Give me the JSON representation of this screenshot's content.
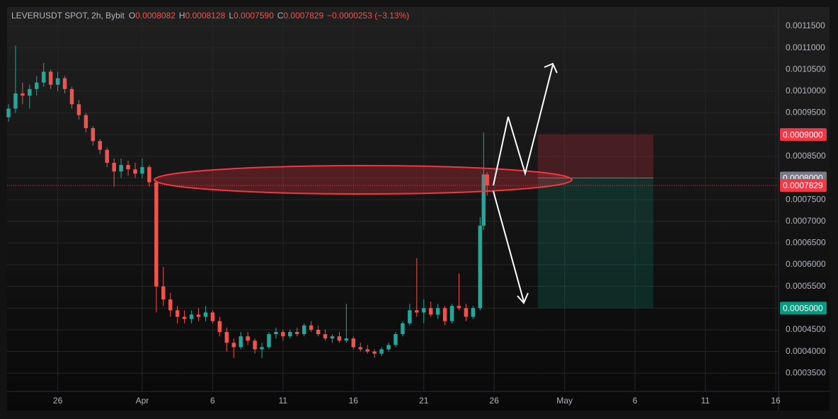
{
  "chart_data": {
    "type": "candlestick",
    "header": {
      "symbol": "LEVERUSDT SPOT, 2h, Bybit",
      "fields": [
        {
          "key": "O",
          "value": "0.0008082"
        },
        {
          "key": "H",
          "value": "0.0008128"
        },
        {
          "key": "L",
          "value": "0.0007590"
        },
        {
          "key": "C",
          "value": "0.0007829"
        }
      ],
      "change": "−0.0000253 (−3.13%)"
    },
    "up_color": "#26a69a",
    "down_color": "#ef5350",
    "x": [
      -9.5,
      -9,
      -8.5,
      -8,
      -7.5,
      -7,
      -6.5,
      -6,
      -5.5,
      -5,
      -4.5,
      -4,
      -3.5,
      -3,
      -2.5,
      -2,
      -1.5,
      -1,
      -0.5,
      0,
      0.5,
      1,
      1.5,
      2,
      2.5,
      3,
      3.5,
      4,
      4.5,
      5,
      5.5,
      6,
      6.5,
      7,
      7.5,
      8,
      8.5,
      9,
      9.5,
      10,
      10.5,
      11,
      11.5,
      12,
      12.5,
      13,
      13.5,
      14,
      14.5,
      15,
      15.5,
      16,
      16.5,
      17,
      17.5,
      18,
      18.5,
      19,
      19.5,
      20,
      20.5,
      21,
      21.5,
      22,
      22.5,
      23,
      23.5,
      24,
      24.25,
      24.5
    ],
    "open": [
      0.00094,
      0.00096,
      0.000995,
      0.00099,
      0.001005,
      0.00102,
      0.001045,
      0.001015,
      0.00103,
      0.001005,
      0.00097,
      0.000945,
      0.000915,
      0.000885,
      0.000865,
      0.000835,
      0.000815,
      0.00083,
      0.00082,
      0.00081,
      0.000825,
      0.00079,
      0.00055,
      0.00052,
      0.000495,
      0.00048,
      0.000475,
      0.000485,
      0.00048,
      0.00049,
      0.00047,
      0.000445,
      0.00042,
      0.00041,
      0.000435,
      0.000425,
      0.000405,
      0.00041,
      0.00044,
      0.000445,
      0.000435,
      0.000445,
      0.00044,
      0.00046,
      0.00045,
      0.00044,
      0.00043,
      0.000435,
      0.000425,
      0.00043,
      0.00041,
      0.000405,
      0.0004,
      0.000395,
      0.000405,
      0.000415,
      0.00044,
      0.000465,
      0.000495,
      0.00049,
      0.0005,
      0.000485,
      0.0005,
      0.00047,
      0.000505,
      0.0005,
      0.00048,
      0.0005,
      0.00069,
      0.0008082
    ],
    "high": [
      0.00097,
      0.001105,
      0.00102,
      0.001015,
      0.001035,
      0.001065,
      0.00105,
      0.001045,
      0.001035,
      0.00101,
      0.00098,
      0.00095,
      0.00092,
      0.00089,
      0.00087,
      0.000845,
      0.000845,
      0.00084,
      0.000835,
      0.000845,
      0.00083,
      0.000795,
      0.000595,
      0.000535,
      0.000505,
      0.000495,
      0.000495,
      0.0005,
      0.000505,
      0.000495,
      0.00048,
      0.000455,
      0.00043,
      0.000445,
      0.000445,
      0.00043,
      0.00042,
      0.000445,
      0.000455,
      0.00045,
      0.00045,
      0.000455,
      0.000465,
      0.00047,
      0.00046,
      0.00045,
      0.00044,
      0.000445,
      0.00051,
      0.000435,
      0.00042,
      0.000415,
      0.000405,
      0.00041,
      0.00042,
      0.000445,
      0.00047,
      0.00051,
      0.000615,
      0.00052,
      0.000515,
      0.00051,
      0.000505,
      0.00051,
      0.00058,
      0.00051,
      0.000505,
      0.00071,
      0.000905,
      0.0008128
    ],
    "low": [
      0.00093,
      0.00095,
      0.00097,
      0.00096,
      0.00099,
      0.00101,
      0.001005,
      0.001,
      0.000995,
      0.00096,
      0.000935,
      0.000905,
      0.000875,
      0.000855,
      0.000825,
      0.00078,
      0.0008,
      0.000805,
      0.0008,
      0.0008,
      0.00078,
      0.00049,
      0.000505,
      0.00048,
      0.000465,
      0.000465,
      0.000465,
      0.00047,
      0.00047,
      0.000465,
      0.000435,
      0.0004,
      0.000385,
      0.000405,
      0.000415,
      0.000395,
      0.000385,
      0.000405,
      0.00043,
      0.000425,
      0.00043,
      0.000435,
      0.000435,
      0.000445,
      0.000435,
      0.000425,
      0.00042,
      0.00042,
      0.00042,
      0.000405,
      0.0004,
      0.000395,
      0.000385,
      0.00039,
      0.0004,
      0.00041,
      0.000435,
      0.00046,
      0.00048,
      0.000465,
      0.00048,
      0.000475,
      0.00046,
      0.000465,
      0.000495,
      0.00047,
      0.000475,
      0.000495,
      0.00068,
      0.000759
    ],
    "close": [
      0.00096,
      0.000995,
      0.00099,
      0.001005,
      0.00102,
      0.001045,
      0.001015,
      0.00103,
      0.001005,
      0.00097,
      0.000945,
      0.000915,
      0.000885,
      0.000865,
      0.000835,
      0.000815,
      0.00083,
      0.00082,
      0.00081,
      0.000825,
      0.00079,
      0.00055,
      0.00052,
      0.000495,
      0.00048,
      0.000475,
      0.000485,
      0.00048,
      0.00049,
      0.00047,
      0.000445,
      0.00042,
      0.00041,
      0.000435,
      0.000425,
      0.000405,
      0.00041,
      0.00044,
      0.000445,
      0.000435,
      0.000445,
      0.00044,
      0.00046,
      0.00045,
      0.00044,
      0.00043,
      0.000435,
      0.000425,
      0.00043,
      0.00041,
      0.000405,
      0.0004,
      0.000395,
      0.000405,
      0.000415,
      0.00044,
      0.000465,
      0.000495,
      0.00049,
      0.0005,
      0.000485,
      0.0005,
      0.00047,
      0.000505,
      0.0005,
      0.00048,
      0.0005,
      0.00069,
      0.0008082,
      0.0007829
    ],
    "xlim": [
      -9.6,
      45.2
    ],
    "xticks": [
      {
        "value": -6,
        "label": "26"
      },
      {
        "value": 0,
        "label": "Apr"
      },
      {
        "value": 5,
        "label": "6"
      },
      {
        "value": 10,
        "label": "11"
      },
      {
        "value": 15,
        "label": "16"
      },
      {
        "value": 20,
        "label": "21"
      },
      {
        "value": 25,
        "label": "26"
      },
      {
        "value": 30,
        "label": "May"
      },
      {
        "value": 35,
        "label": "6"
      },
      {
        "value": 40,
        "label": "11"
      },
      {
        "value": 45,
        "label": "16"
      }
    ],
    "ylim": [
      0.000308,
      0.001194
    ],
    "yticks": [
      {
        "value": 0.00035,
        "label": "0.0003500"
      },
      {
        "value": 0.0004,
        "label": "0.0004000"
      },
      {
        "value": 0.00045,
        "label": "0.0004500"
      },
      {
        "value": 0.0005,
        "label": "0.0005000"
      },
      {
        "value": 0.00055,
        "label": "0.0005500"
      },
      {
        "value": 0.0006,
        "label": "0.0006000"
      },
      {
        "value": 0.00065,
        "label": "0.0006500"
      },
      {
        "value": 0.0007,
        "label": "0.0007000"
      },
      {
        "value": 0.00075,
        "label": "0.0007500"
      },
      {
        "value": 0.0008,
        "label": "0.0008000"
      },
      {
        "value": 0.00085,
        "label": "0.0008500"
      },
      {
        "value": 0.0009,
        "label": "0.0009000"
      },
      {
        "value": 0.00095,
        "label": "0.0009500"
      },
      {
        "value": 0.001,
        "label": "0.0010000"
      },
      {
        "value": 0.00105,
        "label": "0.0010500"
      },
      {
        "value": 0.0011,
        "label": "0.0011000"
      },
      {
        "value": 0.00115,
        "label": "0.0011500"
      }
    ],
    "grid": true,
    "last_price": {
      "value": 0.0007829,
      "label": "0.0007829",
      "color": "#f23645"
    },
    "position": {
      "x_start": 28.1,
      "x_end": 36.3,
      "stop": {
        "value": 0.0009,
        "label": "0.0009000",
        "color": "#f23645"
      },
      "entry": {
        "value": 0.0008,
        "label": "0.0008000",
        "color": "#787b86"
      },
      "target": {
        "value": 0.0005,
        "label": "0.0005000",
        "color": "#089981"
      }
    }
  }
}
